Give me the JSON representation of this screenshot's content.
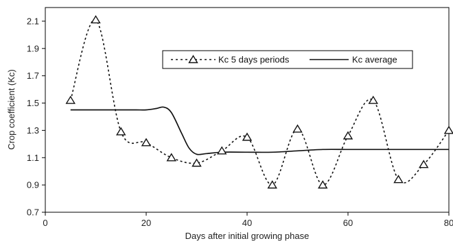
{
  "chart_data": {
    "type": "line",
    "xlabel": "Days after initial growing phase",
    "ylabel": "Crop coefficient (Kc)",
    "xlim": [
      0,
      80
    ],
    "ylim": [
      0.7,
      2.2
    ],
    "x_ticks": [
      "0",
      "20",
      "40",
      "60",
      "80"
    ],
    "y_ticks": [
      "0.7",
      "0.9",
      "1.1",
      "1.3",
      "1.5",
      "1.7",
      "1.9",
      "2.1"
    ],
    "x_tick_values": [
      0,
      20,
      40,
      60,
      80
    ],
    "y_tick_values": [
      0.7,
      0.9,
      1.1,
      1.3,
      1.5,
      1.7,
      1.9,
      2.1
    ],
    "grid": false,
    "legend_position": "top-right",
    "series": [
      {
        "name": "Kc 5 days periods",
        "style": "dotted-triangle-markers",
        "color": "#111111",
        "x": [
          5,
          10,
          15,
          20,
          25,
          30,
          35,
          40,
          45,
          50,
          55,
          60,
          65,
          70,
          75,
          80
        ],
        "y": [
          1.52,
          2.11,
          1.29,
          1.21,
          1.1,
          1.06,
          1.15,
          1.25,
          0.9,
          1.31,
          0.9,
          1.26,
          1.52,
          0.94,
          1.05,
          1.3
        ]
      },
      {
        "name": "Kc average",
        "style": "solid",
        "color": "#111111",
        "x": [
          5,
          10,
          15,
          18,
          20,
          22,
          23.5,
          25,
          27,
          28.5,
          30,
          32,
          35,
          40,
          45,
          50,
          55,
          60,
          65,
          70,
          75,
          80
        ],
        "y": [
          1.45,
          1.45,
          1.45,
          1.45,
          1.45,
          1.46,
          1.47,
          1.43,
          1.28,
          1.17,
          1.125,
          1.13,
          1.14,
          1.14,
          1.14,
          1.15,
          1.16,
          1.16,
          1.16,
          1.16,
          1.16,
          1.16
        ]
      }
    ]
  }
}
